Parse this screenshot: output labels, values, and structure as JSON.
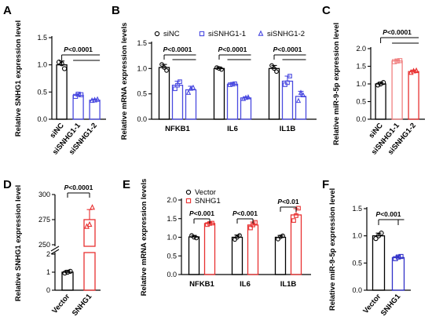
{
  "chart_data": [
    {
      "panel": "A",
      "type": "bar",
      "ylabel": "Relative SNHG1 expression level",
      "ylim": [
        0,
        1.5
      ],
      "yticks": [
        0.0,
        0.5,
        1.0,
        1.5
      ],
      "ytick_labels": [
        "0.0",
        "0.5",
        "1.0",
        "1.5"
      ],
      "categories": [
        "siNC",
        "siSNHG1-1",
        "siSNHG1-2"
      ],
      "values": [
        1.0,
        0.44,
        0.35
      ],
      "errors": [
        0.07,
        0.03,
        0.02
      ],
      "points": [
        [
          1.05,
          0.93,
          1.02
        ],
        [
          0.42,
          0.45,
          0.46
        ],
        [
          0.34,
          0.36,
          0.35
        ]
      ],
      "colors": [
        "#000000",
        "#4a4ae0",
        "#4a4ae0"
      ],
      "markers": [
        "circle",
        "square",
        "triangle"
      ],
      "annotations": [
        {
          "text": "P<0.0001",
          "from": 0,
          "to": [
            1,
            2
          ]
        }
      ]
    },
    {
      "panel": "B",
      "type": "bar",
      "ylabel": "Relative mRNA expression levels",
      "ylim": [
        0,
        1.5
      ],
      "yticks": [
        0.0,
        0.5,
        1.0,
        1.5
      ],
      "ytick_labels": [
        "0.0",
        "0.5",
        "1.0",
        "1.5"
      ],
      "categories": [
        "NFKB1",
        "IL6",
        "IL1B"
      ],
      "legend": [
        "siNC",
        "siSNHG1-1",
        "siSNHG1-2"
      ],
      "series": [
        {
          "name": "siNC",
          "color": "#000000",
          "marker": "circle",
          "values": [
            1.02,
            1.0,
            1.0
          ],
          "errors": [
            0.06,
            0.03,
            0.06
          ],
          "points": [
            [
              1.08,
              0.96,
              1.02
            ],
            [
              1.02,
              0.98,
              1.0
            ],
            [
              1.06,
              0.94,
              1.0
            ]
          ]
        },
        {
          "name": "siSNHG1-1",
          "color": "#4a4ae0",
          "marker": "square",
          "values": [
            0.67,
            0.69,
            0.75
          ],
          "errors": [
            0.08,
            0.02,
            0.1
          ],
          "points": [
            [
              0.6,
              0.74,
              0.67
            ],
            [
              0.68,
              0.7,
              0.69
            ],
            [
              0.68,
              0.85,
              0.72
            ]
          ]
        },
        {
          "name": "siSNHG1-2",
          "color": "#4a4ae0",
          "marker": "triangle",
          "values": [
            0.58,
            0.42,
            0.45
          ],
          "errors": [
            0.07,
            0.02,
            0.1
          ],
          "points": [
            [
              0.52,
              0.62,
              0.6
            ],
            [
              0.4,
              0.43,
              0.42
            ],
            [
              0.36,
              0.47,
              0.52
            ]
          ]
        }
      ],
      "annotations": [
        {
          "text": "P<0.0001",
          "category": 0
        },
        {
          "text": "P<0.0001",
          "category": 1
        },
        {
          "text": "P<0.0001",
          "category": 2
        }
      ]
    },
    {
      "panel": "C",
      "type": "bar",
      "ylabel": "Relative miR-9-5p expression level",
      "ylim": [
        0,
        2.0
      ],
      "yticks": [
        0.0,
        0.5,
        1.0,
        1.5,
        2.0
      ],
      "ytick_labels": [
        "0.0",
        "0.5",
        "1.0",
        "1.5",
        "2.0"
      ],
      "categories": [
        "siNC",
        "siSNHG1-1",
        "siSNHG1-2"
      ],
      "values": [
        1.0,
        1.65,
        1.35
      ],
      "errors": [
        0.05,
        0.03,
        0.04
      ],
      "points": [
        [
          0.97,
          1.04,
          1.0
        ],
        [
          1.63,
          1.66,
          1.65
        ],
        [
          1.32,
          1.37,
          1.36
        ]
      ],
      "colors": [
        "#000000",
        "#f08080",
        "#e83030"
      ],
      "markers": [
        "circle",
        "square",
        "triangle"
      ],
      "annotations": [
        {
          "text": "P<0.0001",
          "from": 0,
          "to": [
            1,
            2
          ]
        }
      ]
    },
    {
      "panel": "D",
      "type": "bar",
      "ylabel": "Relative SNHG1 expression level",
      "axis_break": {
        "lower": [
          0,
          2
        ],
        "upper": [
          250,
          300
        ]
      },
      "yticks": [
        0,
        1,
        2,
        250,
        275,
        300
      ],
      "ytick_labels": [
        "0",
        "1",
        "2",
        "250",
        "275",
        "300"
      ],
      "categories": [
        "Vector",
        "SNHG1"
      ],
      "values": [
        1.0,
        275
      ],
      "errors": [
        0.1,
        10
      ],
      "points": [
        [
          0.95,
          1.05,
          1.0
        ],
        [
          268,
          287,
          270
        ]
      ],
      "colors": [
        "#000000",
        "#e83030"
      ],
      "markers": [
        "circle",
        "triangle"
      ],
      "annotations": [
        {
          "text": "P<0.0001",
          "from": 0,
          "to": [
            1
          ]
        }
      ]
    },
    {
      "panel": "E",
      "type": "bar",
      "ylabel": "Relative mRNA expression levels",
      "ylim": [
        0,
        2.0
      ],
      "yticks": [
        0.0,
        0.5,
        1.0,
        1.5,
        2.0
      ],
      "ytick_labels": [
        "0.0",
        "0.5",
        "1.0",
        "1.5",
        "2.0"
      ],
      "categories": [
        "NFKB1",
        "IL6",
        "IL1B"
      ],
      "legend": [
        "Vector",
        "SNHG1"
      ],
      "series": [
        {
          "name": "Vector",
          "color": "#000000",
          "marker": "circle",
          "values": [
            1.01,
            1.0,
            1.0
          ],
          "errors": [
            0.04,
            0.06,
            0.05
          ],
          "points": [
            [
              1.05,
              0.98,
              1.0
            ],
            [
              0.94,
              1.05,
              1.0
            ],
            [
              0.95,
              1.04,
              1.01
            ]
          ]
        },
        {
          "name": "SNHG1",
          "color": "#e83030",
          "marker": "square",
          "values": [
            1.37,
            1.33,
            1.6
          ],
          "errors": [
            0.03,
            0.08,
            0.17
          ],
          "points": [
            [
              1.34,
              1.38,
              1.37
            ],
            [
              1.25,
              1.4,
              1.33
            ],
            [
              1.45,
              1.78,
              1.58
            ]
          ]
        }
      ],
      "annotations": [
        {
          "text": "P<0.001",
          "category": 0
        },
        {
          "text": "P<0.001",
          "category": 1
        },
        {
          "text": "P<0.01",
          "category": 2
        }
      ]
    },
    {
      "panel": "F",
      "type": "bar",
      "ylabel": "Relative miR-9-5p expression level",
      "ylim": [
        0,
        1.5
      ],
      "yticks": [
        0.0,
        0.5,
        1.0,
        1.5
      ],
      "ytick_labels": [
        "0.0",
        "0.5",
        "1.0",
        "1.5"
      ],
      "categories": [
        "Vector",
        "SNHG1"
      ],
      "values": [
        1.0,
        0.6
      ],
      "errors": [
        0.05,
        0.03
      ],
      "points": [
        [
          0.95,
          1.05,
          1.0
        ],
        [
          0.58,
          0.62,
          0.61
        ]
      ],
      "colors": [
        "#000000",
        "#3030c8"
      ],
      "markers": [
        "circle",
        "square"
      ],
      "annotations": [
        {
          "text": "P<0.001",
          "from": 0,
          "to": [
            1
          ]
        }
      ]
    }
  ]
}
